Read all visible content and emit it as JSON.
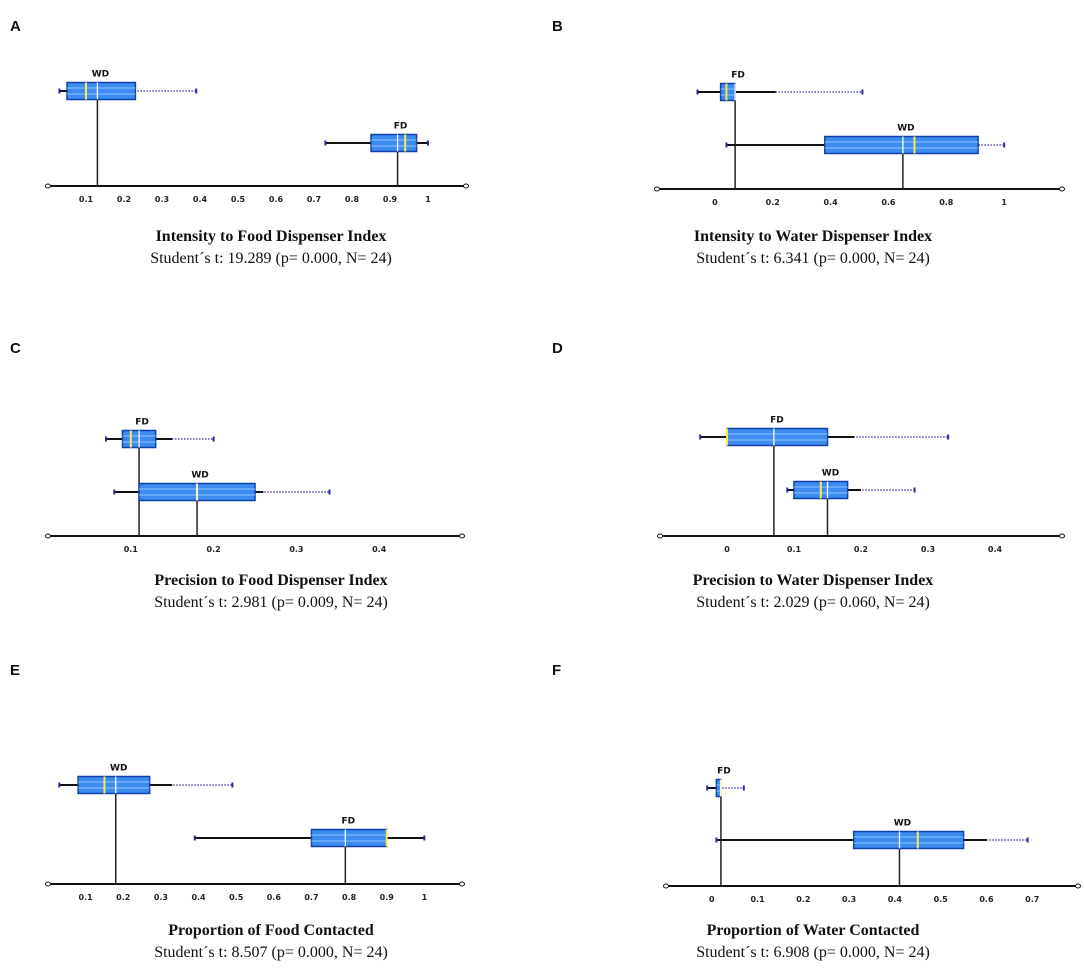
{
  "colors": {
    "box_fill": "#3c8cf0",
    "box_stroke": "#1040a8",
    "mean_line": "#ffe84a",
    "whisker_dot": "#2a2aa0",
    "axis": "#111111"
  },
  "chart_data": [
    {
      "letter": "A",
      "type": "boxplot",
      "title": "Intensity to Food Dispenser Index",
      "stat": "Student´s t: 19.289 (p= 0.000, N= 24)",
      "xlim": [
        0,
        1.1
      ],
      "ticks": [
        0.1,
        0.2,
        0.3,
        0.4,
        0.5,
        0.6,
        0.7,
        0.8,
        0.9,
        1
      ],
      "tick_labels": [
        "0.1",
        "0.2",
        "0.3",
        "0.4",
        "0.5",
        "0.6",
        "0.7",
        "0.8",
        "0.9",
        "1"
      ],
      "boxes": [
        {
          "label": "WD",
          "row": 0,
          "min": 0.03,
          "whisker_hi": 0.23,
          "max": 0.39,
          "q1": 0.05,
          "median": 0.13,
          "q3": 0.23,
          "mean": 0.1
        },
        {
          "label": "FD",
          "row": 1,
          "min": 0.73,
          "whisker_hi": 1.0,
          "max": 1.0,
          "q1": 0.85,
          "median": 0.92,
          "q3": 0.97,
          "mean": 0.94
        }
      ]
    },
    {
      "letter": "B",
      "type": "boxplot",
      "title": "Intensity to Water Dispenser Index",
      "stat": "Student´s t: 6.341 (p= 0.000, N= 24)",
      "xlim": [
        -0.2,
        1.2
      ],
      "ticks": [
        0,
        0.2,
        0.4,
        0.6,
        0.8,
        1
      ],
      "tick_labels": [
        "0",
        "0.2",
        "0.4",
        "0.6",
        "0.8",
        "1"
      ],
      "boxes": [
        {
          "label": "FD",
          "row": 0,
          "min": -0.06,
          "whisker_hi": 0.21,
          "max": 0.51,
          "q1": 0.02,
          "median": 0.07,
          "q3": 0.07,
          "mean": 0.04
        },
        {
          "label": "WD",
          "row": 1,
          "min": 0.04,
          "whisker_hi": 0.91,
          "max": 1.0,
          "q1": 0.38,
          "median": 0.65,
          "q3": 0.91,
          "mean": 0.69
        }
      ]
    },
    {
      "letter": "C",
      "type": "boxplot",
      "title": "Precision to Food Dispenser Index",
      "stat": "Student´s t: 2.981 (p= 0.009, N= 24)",
      "xlim": [
        0,
        0.5
      ],
      "ticks": [
        0.1,
        0.2,
        0.3,
        0.4
      ],
      "tick_labels": [
        "0.1",
        "0.2",
        "0.3",
        "0.4"
      ],
      "boxes": [
        {
          "label": "FD",
          "row": 0,
          "min": 0.07,
          "whisker_hi": 0.15,
          "max": 0.2,
          "q1": 0.09,
          "median": 0.11,
          "q3": 0.13,
          "mean": 0.1
        },
        {
          "label": "WD",
          "row": 1,
          "min": 0.08,
          "whisker_hi": 0.26,
          "max": 0.34,
          "q1": 0.11,
          "median": 0.18,
          "q3": 0.25,
          "mean": 0.18
        }
      ]
    },
    {
      "letter": "D",
      "type": "boxplot",
      "title": "Precision to Water Dispenser Index",
      "stat": "Student´s t: 2.029 (p= 0.060, N= 24)",
      "xlim": [
        -0.1,
        0.5
      ],
      "ticks": [
        0,
        0.1,
        0.2,
        0.3,
        0.4
      ],
      "tick_labels": [
        "0",
        "0.1",
        "0.2",
        "0.3",
        "0.4"
      ],
      "boxes": [
        {
          "label": "FD",
          "row": 0,
          "min": -0.04,
          "whisker_hi": 0.19,
          "max": 0.33,
          "q1": 0.0,
          "median": 0.07,
          "q3": 0.15,
          "mean": 0.0
        },
        {
          "label": "WD",
          "row": 1,
          "min": 0.09,
          "whisker_hi": 0.2,
          "max": 0.28,
          "q1": 0.1,
          "median": 0.15,
          "q3": 0.18,
          "mean": 0.14
        }
      ]
    },
    {
      "letter": "E",
      "type": "boxplot",
      "title": "Proportion  of Food Contacted",
      "stat": "Student´s t: 8.507 (p= 0.000, N= 24)",
      "xlim": [
        0,
        1.1
      ],
      "ticks": [
        0.1,
        0.2,
        0.3,
        0.4,
        0.5,
        0.6,
        0.7,
        0.8,
        0.9,
        1
      ],
      "tick_labels": [
        "0.1",
        "0.2",
        "0.3",
        "0.4",
        "0.5",
        "0.6",
        "0.7",
        "0.8",
        "0.9",
        "1"
      ],
      "boxes": [
        {
          "label": "WD",
          "row": 0,
          "min": 0.03,
          "whisker_hi": 0.33,
          "max": 0.49,
          "q1": 0.08,
          "median": 0.18,
          "q3": 0.27,
          "mean": 0.15
        },
        {
          "label": "FD",
          "row": 1,
          "min": 0.39,
          "whisker_hi": 1.0,
          "max": 1.0,
          "q1": 0.7,
          "median": 0.79,
          "q3": 0.9,
          "mean": 0.9
        }
      ]
    },
    {
      "letter": "F",
      "type": "boxplot",
      "title": "Proportion  of Water Contacted",
      "stat": "Student´s t: 6.908 (p= 0.000, N= 24)",
      "xlim": [
        -0.1,
        0.8
      ],
      "ticks": [
        0,
        0.1,
        0.2,
        0.3,
        0.4,
        0.5,
        0.6,
        0.7
      ],
      "tick_labels": [
        "0",
        "0.1",
        "0.2",
        "0.3",
        "0.4",
        "0.5",
        "0.6",
        "0.7"
      ],
      "boxes": [
        {
          "label": "FD",
          "row": 0,
          "min": -0.01,
          "whisker_hi": 0.02,
          "max": 0.07,
          "q1": 0.01,
          "median": 0.02,
          "q3": 0.02,
          "mean": 0.02
        },
        {
          "label": "WD",
          "row": 1,
          "min": 0.01,
          "whisker_hi": 0.6,
          "max": 0.69,
          "q1": 0.31,
          "median": 0.41,
          "q3": 0.55,
          "mean": 0.45
        }
      ]
    }
  ]
}
